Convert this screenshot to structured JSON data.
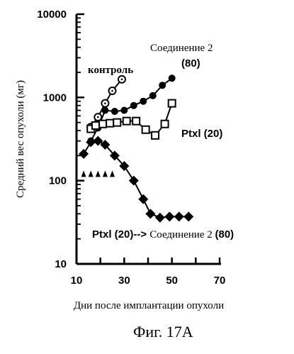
{
  "chart_data": {
    "type": "line",
    "xlabel": "Дни после имплантации опухоли",
    "ylabel": "Средний вес опухоли (мг)",
    "xlim": [
      10,
      70
    ],
    "ylim": [
      10,
      10000
    ],
    "y_scale": "log",
    "x_ticks": [
      "10",
      "30",
      "50",
      "70"
    ],
    "y_ticks": [
      "10",
      "100",
      "1000",
      "10000"
    ],
    "caption": "Фиг. 17А",
    "annotations": [
      {
        "text": "контроль"
      },
      {
        "text": "Соединение 2"
      },
      {
        "text": "(80)"
      },
      {
        "text": "Ptxl (20)"
      },
      {
        "text": "Ptxl (20)--> "
      },
      {
        "text": "Соединение 2 "
      },
      {
        "text": "(80)"
      }
    ],
    "series": [
      {
        "marker": "open-circle",
        "x": [
          16,
          19,
          22,
          25,
          29
        ],
        "y": [
          440,
          580,
          850,
          1200,
          1650
        ]
      },
      {
        "marker": "filled-circle",
        "x": [
          16,
          19,
          22,
          26,
          30,
          34,
          38,
          42,
          46,
          50
        ],
        "y": [
          300,
          430,
          700,
          680,
          700,
          800,
          900,
          1050,
          1400,
          1700
        ]
      },
      {
        "marker": "open-square",
        "x": [
          16,
          18,
          21,
          24,
          27,
          31,
          35,
          39,
          43,
          47,
          50
        ],
        "y": [
          420,
          460,
          480,
          490,
          500,
          520,
          520,
          410,
          350,
          480,
          850
        ]
      },
      {
        "marker": "filled-diamond",
        "x": [
          13,
          16,
          19,
          22,
          26,
          30,
          34,
          38,
          41,
          45,
          49,
          53,
          57
        ],
        "y": [
          210,
          290,
          300,
          270,
          200,
          150,
          100,
          60,
          40,
          36,
          37,
          37,
          37
        ]
      },
      {
        "marker": "filled-triangle",
        "x": [
          13,
          16,
          19,
          22,
          25
        ],
        "y": [
          120,
          120,
          120,
          120,
          120
        ]
      }
    ]
  }
}
